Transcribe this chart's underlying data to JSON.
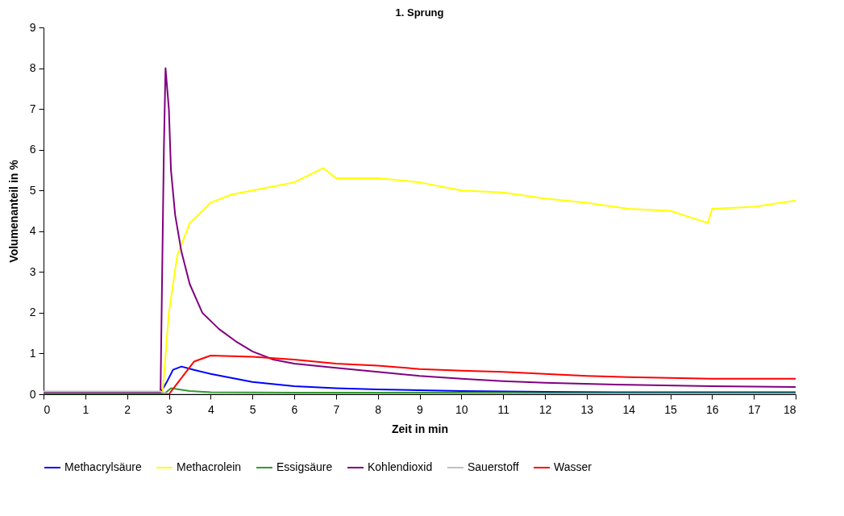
{
  "chart_data": {
    "type": "line",
    "title": "1. Sprung",
    "xlabel": "Zeit in min",
    "ylabel": "Volumenanteil in %",
    "xlim": [
      0,
      18
    ],
    "xticks": [
      0,
      1,
      2,
      3,
      4,
      5,
      6,
      7,
      8,
      9,
      10,
      11,
      12,
      13,
      14,
      15,
      16,
      17,
      18
    ],
    "ylim": [
      0,
      9
    ],
    "yticks": [
      0,
      1,
      2,
      3,
      4,
      5,
      6,
      7,
      8,
      9
    ],
    "grid": false,
    "legend": "bottom",
    "line_style": "solid",
    "marker": "none",
    "series": [
      {
        "name": "Methacrylsäure",
        "color": "#0000ff",
        "x": [
          2.8,
          2.95,
          3.1,
          3.3,
          3.6,
          4,
          4.5,
          5,
          6,
          7,
          8,
          9,
          10,
          12,
          14,
          16,
          18
        ],
        "values": [
          0.03,
          0.3,
          0.6,
          0.68,
          0.6,
          0.5,
          0.4,
          0.3,
          0.2,
          0.15,
          0.12,
          0.1,
          0.08,
          0.06,
          0.05,
          0.05,
          0.05
        ]
      },
      {
        "name": "Methacrolein",
        "color": "#ffff00",
        "x": [
          2.85,
          3,
          3.2,
          3.5,
          4,
          4.5,
          5,
          5.5,
          6,
          6.7,
          7,
          8,
          9,
          10,
          11,
          12,
          13,
          14,
          15,
          15.9,
          16,
          17,
          18
        ],
        "values": [
          0.03,
          2,
          3.4,
          4.2,
          4.7,
          4.9,
          5,
          5.1,
          5.2,
          5.55,
          5.3,
          5.3,
          5.2,
          5,
          4.95,
          4.8,
          4.7,
          4.55,
          4.5,
          4.2,
          4.55,
          4.6,
          4.75
        ]
      },
      {
        "name": "Essigsäure",
        "color": "#339933",
        "x": [
          0,
          1,
          2,
          2.9,
          3.05,
          3.5,
          4,
          6,
          9,
          12,
          15,
          18
        ],
        "values": [
          0.02,
          0.02,
          0.02,
          0.02,
          0.15,
          0.08,
          0.05,
          0.04,
          0.04,
          0.03,
          0.03,
          0.03
        ]
      },
      {
        "name": "Kohlendioxid",
        "color": "#800080",
        "x": [
          0,
          1,
          2,
          2.8,
          2.88,
          2.92,
          3,
          3.05,
          3.15,
          3.3,
          3.5,
          3.8,
          4.2,
          4.6,
          5,
          5.5,
          6,
          7,
          8,
          9,
          10,
          11,
          12,
          14,
          16,
          18
        ],
        "values": [
          0.05,
          0.05,
          0.05,
          0.05,
          6,
          8,
          7,
          5.5,
          4.4,
          3.5,
          2.7,
          2,
          1.6,
          1.3,
          1.05,
          0.85,
          0.75,
          0.65,
          0.55,
          0.45,
          0.38,
          0.32,
          0.28,
          0.23,
          0.2,
          0.18
        ]
      },
      {
        "name": "Sauerstoff",
        "color": "#c0c0c0",
        "x": [
          0,
          1,
          2,
          2.8,
          3,
          6,
          10,
          14,
          18
        ],
        "values": [
          0.07,
          0.07,
          0.07,
          0.07,
          0,
          0,
          0,
          0,
          0
        ]
      },
      {
        "name": "Wasser",
        "color": "#ff0000",
        "x": [
          2.9,
          3,
          3.3,
          3.6,
          4,
          5,
          6,
          7,
          8,
          9,
          10,
          11,
          12,
          13,
          14,
          16,
          18
        ],
        "values": [
          0,
          0,
          0.4,
          0.8,
          0.95,
          0.92,
          0.85,
          0.75,
          0.7,
          0.62,
          0.58,
          0.55,
          0.5,
          0.45,
          0.42,
          0.38,
          0.38
        ]
      }
    ]
  }
}
